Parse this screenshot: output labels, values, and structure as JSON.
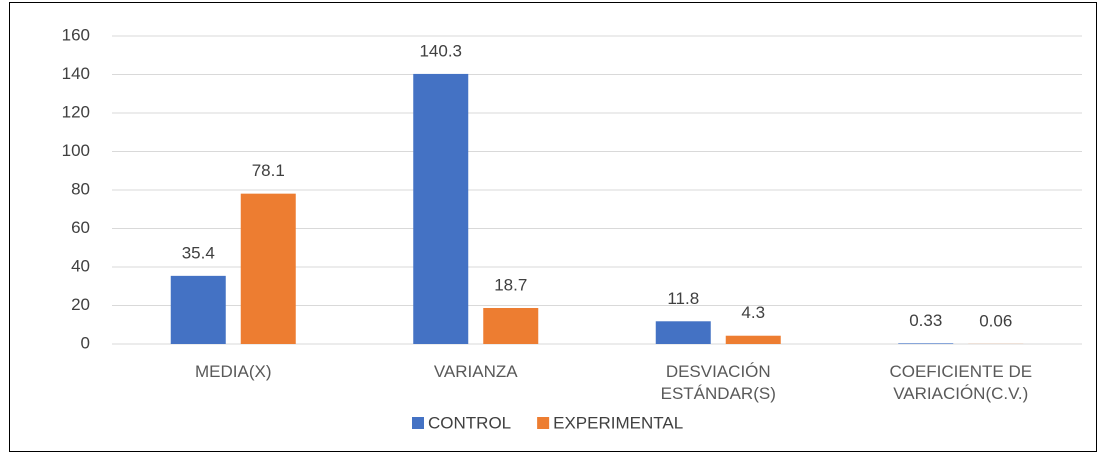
{
  "chart_data": {
    "type": "bar",
    "categories": [
      "MEDIA(X)",
      "VARIANZA",
      "DESVIACIÓN ESTÁNDAR(S)",
      "COEFICIENTE DE VARIACIÓN(C.V.)"
    ],
    "series": [
      {
        "name": "CONTROL",
        "color": "#4472c4",
        "values": [
          35.4,
          140.3,
          11.8,
          0.33
        ]
      },
      {
        "name": "EXPERIMENTAL",
        "color": "#ed7d31",
        "values": [
          78.1,
          18.7,
          4.3,
          0.06
        ]
      }
    ],
    "ylim": [
      0,
      160
    ],
    "yticks": [
      0,
      20,
      40,
      60,
      80,
      100,
      120,
      140,
      160
    ],
    "grid": true,
    "legend": "bottom"
  }
}
